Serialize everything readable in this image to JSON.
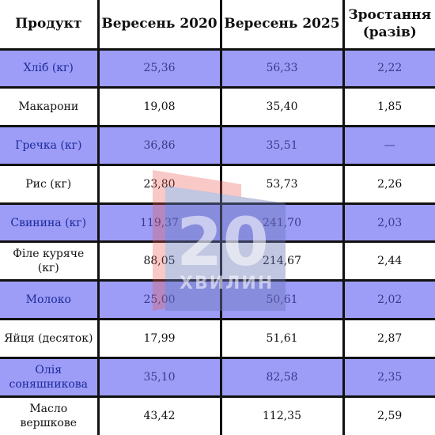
{
  "table": {
    "headers": [
      "Продукт",
      "Вересень 2020",
      "Вересень 2025",
      "Зростання (разів)"
    ],
    "rows": [
      {
        "product": "Хліб (кг)",
        "sep2020": "25,36",
        "sep2025": "56,33",
        "growth": "2,22",
        "shaded": true
      },
      {
        "product": "Макарони",
        "sep2020": "19,08",
        "sep2025": "35,40",
        "growth": "1,85",
        "shaded": false
      },
      {
        "product": "Гречка (кг)",
        "sep2020": "36,86",
        "sep2025": "35,51",
        "growth": "—",
        "shaded": true
      },
      {
        "product": "Рис (кг)",
        "sep2020": "23,80",
        "sep2025": "53,73",
        "growth": "2,26",
        "shaded": false
      },
      {
        "product": "Свинина (кг)",
        "sep2020": "119,37",
        "sep2025": "241,70",
        "growth": "2,03",
        "shaded": true
      },
      {
        "product": "Філе куряче (кг)",
        "sep2020": "88,05",
        "sep2025": "214,67",
        "growth": "2,44",
        "shaded": false
      },
      {
        "product": "Молоко",
        "sep2020": "25,00",
        "sep2025": "50,61",
        "growth": "2,02",
        "shaded": true
      },
      {
        "product": "Яйця (десяток)",
        "sep2020": "17,99",
        "sep2025": "51,61",
        "growth": "2,87",
        "shaded": false
      },
      {
        "product": "Олія соняшникова",
        "sep2020": "35,10",
        "sep2025": "82,58",
        "growth": "2,35",
        "shaded": true
      },
      {
        "product": "Масло вершкове",
        "sep2020": "43,42",
        "sep2025": "112,35",
        "growth": "2,59",
        "shaded": false
      }
    ]
  },
  "watermark": {
    "number": "20",
    "word": "ХВИЛИН",
    "colors": {
      "accent": "#e8574f",
      "shape": "#6b78b8"
    }
  },
  "colors": {
    "shaded_row": "#9d9cf6",
    "shaded_text": "#1b2a9c",
    "border": "#111111"
  }
}
